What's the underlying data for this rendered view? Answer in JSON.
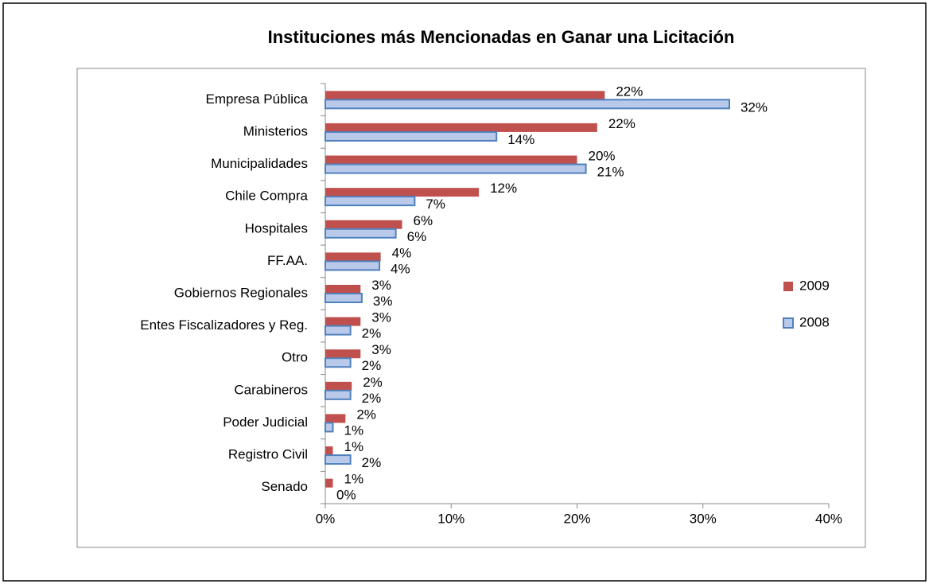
{
  "chart_data": {
    "type": "barh",
    "title": "Instituciones más Mencionadas en Ganar una Licitación",
    "categories": [
      "Empresa Pública",
      "Ministerios",
      "Municipalidades",
      "Chile Compra",
      "Hospitales",
      "FF.AA.",
      "Gobiernos Regionales",
      "Entes Fiscalizadores y Reg.",
      "Otro",
      "Carabineros",
      "Poder Judicial",
      "Registro Civil",
      "Senado"
    ],
    "series": [
      {
        "name": "2009",
        "color": "#c0504d",
        "values": [
          22.2,
          21.6,
          20.0,
          12.2,
          6.1,
          4.4,
          2.8,
          2.8,
          2.8,
          2.1,
          1.6,
          0.6,
          0.6
        ],
        "value_labels": [
          "22%",
          "22%",
          "20%",
          "12%",
          "6%",
          "4%",
          "3%",
          "3%",
          "3%",
          "2%",
          "2%",
          "1%",
          "1%"
        ]
      },
      {
        "name": "2008",
        "color": "#4f81bd",
        "values": [
          32.1,
          13.6,
          20.7,
          7.1,
          5.6,
          4.3,
          2.9,
          2.0,
          2.0,
          2.0,
          0.6,
          2.0,
          0
        ],
        "value_labels": [
          "32%",
          "14%",
          "21%",
          "7%",
          "6%",
          "4%",
          "3%",
          "2%",
          "2%",
          "2%",
          "1%",
          "2%",
          "0%"
        ]
      }
    ],
    "xlim": [
      0,
      40
    ],
    "xticks": [
      {
        "value": 0,
        "label": "0%"
      },
      {
        "value": 10,
        "label": "10%"
      },
      {
        "value": 20,
        "label": "20%"
      },
      {
        "value": 30,
        "label": "30%"
      },
      {
        "value": 40,
        "label": "40%"
      }
    ],
    "legend": "right"
  }
}
